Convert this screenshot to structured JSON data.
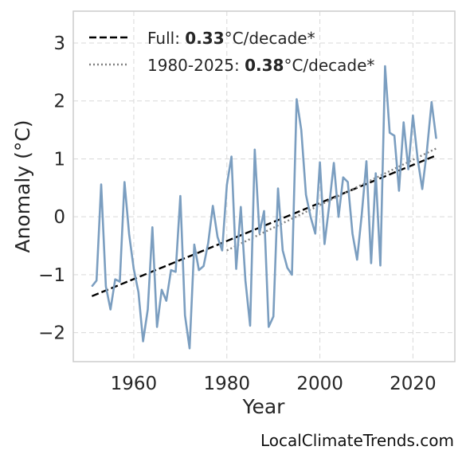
{
  "chart_data": {
    "type": "line",
    "title": "",
    "xlabel": "Year",
    "ylabel": "Anomaly (°C)",
    "xlim": [
      1947,
      2029
    ],
    "ylim": [
      -2.5,
      3.55
    ],
    "xticks": [
      1960,
      1980,
      2000,
      2020
    ],
    "yticks": [
      -2,
      -1,
      0,
      1,
      2,
      3
    ],
    "ytick_labels": [
      "−2",
      "−1",
      "0",
      "1",
      "2",
      "3"
    ],
    "grid": true,
    "legend_position": "top-left",
    "colors": {
      "series": "#7b9ec0",
      "full_trend": "#000000",
      "recent_trend": "#808080",
      "frame": "#cccccc",
      "grid": "#d9d9d9"
    },
    "series": [
      {
        "x": [
          1951,
          1952,
          1953,
          1954,
          1955,
          1956,
          1957,
          1958,
          1959,
          1960,
          1961,
          1962,
          1963,
          1964,
          1965,
          1966,
          1967,
          1968,
          1969,
          1970,
          1971,
          1972,
          1973,
          1974,
          1975,
          1976,
          1977,
          1978,
          1979,
          1980,
          1981,
          1982,
          1983,
          1984,
          1985,
          1986,
          1987,
          1988,
          1989,
          1990,
          1991,
          1992,
          1993,
          1994,
          1995,
          1996,
          1997,
          1998,
          1999,
          2000,
          2001,
          2002,
          2003,
          2004,
          2005,
          2006,
          2007,
          2008,
          2009,
          2010,
          2011,
          2012,
          2013,
          2014,
          2015,
          2016,
          2017,
          2018,
          2019,
          2020,
          2021,
          2022,
          2023,
          2024,
          2025
        ],
        "values": [
          -1.2,
          -1.1,
          0.56,
          -1.2,
          -1.6,
          -1.08,
          -1.12,
          0.6,
          -0.3,
          -0.9,
          -1.3,
          -2.15,
          -1.6,
          -0.18,
          -1.9,
          -1.26,
          -1.45,
          -0.92,
          -0.95,
          0.36,
          -1.7,
          -2.27,
          -0.48,
          -0.92,
          -0.85,
          -0.45,
          0.19,
          -0.35,
          -0.58,
          0.55,
          1.04,
          -0.9,
          0.17,
          -1.1,
          -1.88,
          1.16,
          -0.28,
          0.1,
          -1.9,
          -1.72,
          0.49,
          -0.58,
          -0.88,
          -1.0,
          2.03,
          1.5,
          0.38,
          0.0,
          -0.29,
          0.94,
          -0.47,
          0.2,
          0.93,
          0.0,
          0.68,
          0.6,
          -0.29,
          -0.74,
          0.05,
          0.96,
          -0.8,
          0.75,
          -0.84,
          2.6,
          1.45,
          1.4,
          0.45,
          1.63,
          0.82,
          1.75,
          1.0,
          0.48,
          1.15,
          1.98,
          1.35
        ]
      }
    ],
    "trends": [
      {
        "label_prefix": "Full: ",
        "value": "0.33",
        "label_suffix": "°C/decade*",
        "x": [
          1951,
          2025
        ],
        "y": [
          -1.37,
          1.06
        ],
        "style": "dashed"
      },
      {
        "label_prefix": "1980-2025: ",
        "value": "0.38",
        "label_suffix": "°C/decade*",
        "x": [
          1980,
          2025
        ],
        "y": [
          -0.58,
          1.18
        ],
        "style": "dotted"
      }
    ],
    "annotation": "LocalClimateTrends.com"
  }
}
